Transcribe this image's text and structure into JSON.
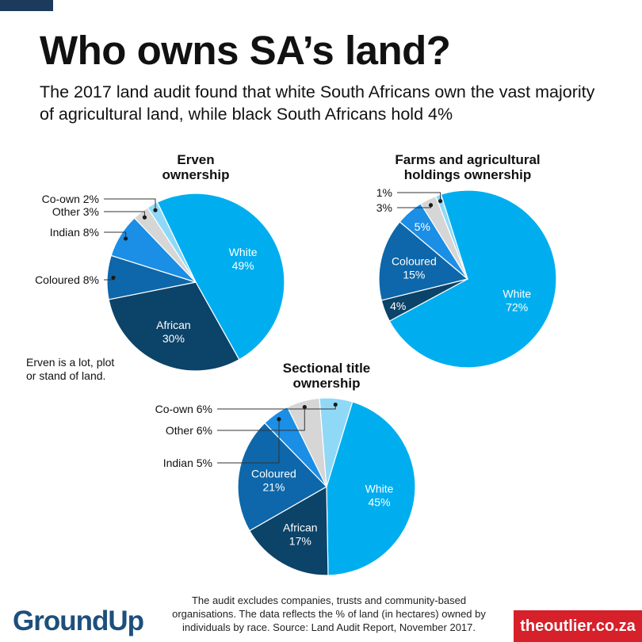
{
  "title": "Who owns SA’s land?",
  "subtitle": "The 2017 land audit found that white South Africans own the vast majority of agricultural land, while black South Africans hold 4%",
  "footnote": "The audit excludes companies, trusts and community-based organisations. The data reflects the % of land (in hectares) owned by individuals by race. Source: Land Audit Report, November 2017.",
  "logos": {
    "left": "GroundUp",
    "right": "theoutlier.co.za"
  },
  "colors": {
    "White": "#00aeef",
    "African": "#0c4368",
    "Coloured": "#0d67aa",
    "Indian": "#1b8ee6",
    "Other": "#d6d6d6",
    "Co-own": "#8fd9f7"
  },
  "chart_data": [
    {
      "type": "pie",
      "title": "Erven ownership",
      "title_lines": [
        "Erven",
        "ownership"
      ],
      "note": "Erven is a lot, plot or stand of land.",
      "note_lines": [
        "Erven is a lot, plot",
        "or stand of land."
      ],
      "slices": [
        {
          "category": "White",
          "value": 49,
          "label": "White",
          "pct": "49%"
        },
        {
          "category": "African",
          "value": 30,
          "label": "African",
          "pct": "30%"
        },
        {
          "category": "Coloured",
          "value": 8,
          "label": "Coloured 8%"
        },
        {
          "category": "Indian",
          "value": 8,
          "label": "Indian 8%"
        },
        {
          "category": "Other",
          "value": 3,
          "label": "Other 3%"
        },
        {
          "category": "Co-own",
          "value": 2,
          "label": "Co-own 2%"
        }
      ]
    },
    {
      "type": "pie",
      "title": "Farms and agricultural holdings ownership",
      "title_lines": [
        "Farms and agricultural",
        "holdings ownership"
      ],
      "slices": [
        {
          "category": "White",
          "value": 72,
          "label": "White",
          "pct": "72%"
        },
        {
          "category": "African",
          "value": 4,
          "label": "4%"
        },
        {
          "category": "Coloured",
          "value": 15,
          "label": "Coloured",
          "pct": "15%"
        },
        {
          "category": "Indian",
          "value": 5,
          "label": "5%"
        },
        {
          "category": "Other",
          "value": 3,
          "label": "3%"
        },
        {
          "category": "Co-own",
          "value": 1,
          "label": "1%"
        }
      ]
    },
    {
      "type": "pie",
      "title": "Sectional title ownership",
      "title_lines": [
        "Sectional title",
        "ownership"
      ],
      "slices": [
        {
          "category": "White",
          "value": 45,
          "label": "White",
          "pct": "45%"
        },
        {
          "category": "African",
          "value": 17,
          "label": "African",
          "pct": "17%"
        },
        {
          "category": "Coloured",
          "value": 21,
          "label": "Coloured",
          "pct": "21%"
        },
        {
          "category": "Indian",
          "value": 5,
          "label": "Indian 5%"
        },
        {
          "category": "Other",
          "value": 6,
          "label": "Other 6%"
        },
        {
          "category": "Co-own",
          "value": 6,
          "label": "Co-own 6%"
        }
      ]
    }
  ]
}
